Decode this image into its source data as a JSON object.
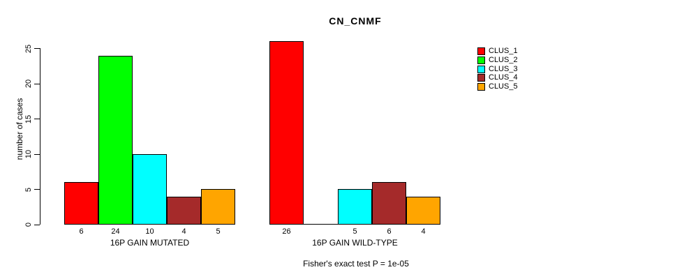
{
  "chart_data": {
    "type": "bar",
    "title": "CN_CNMF",
    "ylabel": "number of cases",
    "xlabel": "",
    "ylim": [
      0,
      25
    ],
    "yticks": [
      0,
      5,
      10,
      15,
      20,
      25
    ],
    "grid": false,
    "legend_position": "right",
    "bar_value_labels_shown": true,
    "categories": [
      "16P GAIN MUTATED",
      "16P GAIN WILD-TYPE"
    ],
    "series": [
      {
        "name": "CLUS_1",
        "color": "#FF0000",
        "values": [
          6,
          26
        ]
      },
      {
        "name": "CLUS_2",
        "color": "#00FF00",
        "values": [
          24,
          0
        ]
      },
      {
        "name": "CLUS_3",
        "color": "#00FFFF",
        "values": [
          10,
          5
        ]
      },
      {
        "name": "CLUS_4",
        "color": "#A52A2A",
        "values": [
          4,
          6
        ]
      },
      {
        "name": "CLUS_5",
        "color": "#FFA500",
        "values": [
          5,
          4
        ]
      }
    ],
    "footnote": "Fisher's exact test P = 1e-05"
  }
}
